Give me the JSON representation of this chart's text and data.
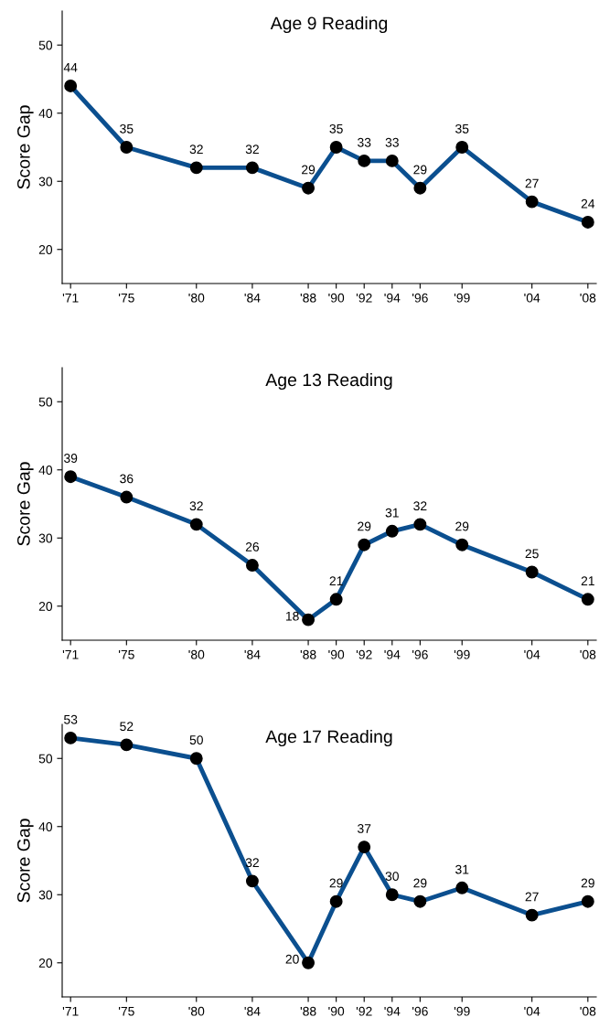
{
  "chart_data": [
    {
      "type": "line",
      "title": "Age 9 Reading",
      "ylabel": "Score Gap",
      "x": [
        1971,
        1975,
        1980,
        1984,
        1988,
        1990,
        1992,
        1994,
        1996,
        1999,
        2004,
        2008
      ],
      "series": [
        {
          "color": "#0b4f8f",
          "values": [
            44,
            35,
            32,
            32,
            29,
            35,
            33,
            33,
            29,
            35,
            27,
            24
          ]
        }
      ],
      "xlim": [
        1970.4,
        2008.6
      ],
      "xticks": [
        {
          "value": 1971,
          "label": "'71"
        },
        {
          "value": 1975,
          "label": "'75"
        },
        {
          "value": 1980,
          "label": "'80"
        },
        {
          "value": 1984,
          "label": "'84"
        },
        {
          "value": 1988,
          "label": "'88"
        },
        {
          "value": 1990,
          "label": "'90"
        },
        {
          "value": 1992,
          "label": "'92"
        },
        {
          "value": 1994,
          "label": "'94"
        },
        {
          "value": 1996,
          "label": "'96"
        },
        {
          "value": 1999,
          "label": "'99"
        },
        {
          "value": 2004,
          "label": "'04"
        },
        {
          "value": 2008,
          "label": "'08"
        }
      ],
      "ylim": [
        15,
        55
      ],
      "yticks": [
        20,
        30,
        40,
        50
      ],
      "marker": "circle",
      "line_style": "solid",
      "data_labels": true
    },
    {
      "type": "line",
      "title": "Age 13 Reading",
      "ylabel": "Score Gap",
      "x": [
        1971,
        1975,
        1980,
        1984,
        1988,
        1990,
        1992,
        1994,
        1996,
        1999,
        2004,
        2008
      ],
      "series": [
        {
          "color": "#0b4f8f",
          "values": [
            39,
            36,
            32,
            26,
            18,
            21,
            29,
            31,
            32,
            29,
            25,
            21
          ]
        }
      ],
      "xlim": [
        1970.4,
        2008.6
      ],
      "xticks": [
        {
          "value": 1971,
          "label": "'71"
        },
        {
          "value": 1975,
          "label": "'75"
        },
        {
          "value": 1980,
          "label": "'80"
        },
        {
          "value": 1984,
          "label": "'84"
        },
        {
          "value": 1988,
          "label": "'88"
        },
        {
          "value": 1990,
          "label": "'90"
        },
        {
          "value": 1992,
          "label": "'92"
        },
        {
          "value": 1994,
          "label": "'94"
        },
        {
          "value": 1996,
          "label": "'96"
        },
        {
          "value": 1999,
          "label": "'99"
        },
        {
          "value": 2004,
          "label": "'04"
        },
        {
          "value": 2008,
          "label": "'08"
        }
      ],
      "ylim": [
        15,
        55
      ],
      "yticks": [
        20,
        30,
        40,
        50
      ],
      "marker": "circle",
      "line_style": "solid",
      "data_labels": true
    },
    {
      "type": "line",
      "title": "Age 17 Reading",
      "ylabel": "Score Gap",
      "x": [
        1971,
        1975,
        1980,
        1984,
        1988,
        1990,
        1992,
        1994,
        1996,
        1999,
        2004,
        2008
      ],
      "series": [
        {
          "color": "#0b4f8f",
          "values": [
            53,
            52,
            50,
            32,
            20,
            29,
            37,
            30,
            29,
            31,
            27,
            29
          ]
        }
      ],
      "xlim": [
        1970.4,
        2008.6
      ],
      "xticks": [
        {
          "value": 1971,
          "label": "'71"
        },
        {
          "value": 1975,
          "label": "'75"
        },
        {
          "value": 1980,
          "label": "'80"
        },
        {
          "value": 1984,
          "label": "'84"
        },
        {
          "value": 1988,
          "label": "'88"
        },
        {
          "value": 1990,
          "label": "'90"
        },
        {
          "value": 1992,
          "label": "'92"
        },
        {
          "value": 1994,
          "label": "'94"
        },
        {
          "value": 1996,
          "label": "'96"
        },
        {
          "value": 1999,
          "label": "'99"
        },
        {
          "value": 2004,
          "label": "'04"
        },
        {
          "value": 2008,
          "label": "'08"
        }
      ],
      "ylim": [
        15,
        55
      ],
      "yticks": [
        20,
        30,
        40,
        50
      ],
      "marker": "circle",
      "line_style": "solid",
      "data_labels": true
    }
  ]
}
